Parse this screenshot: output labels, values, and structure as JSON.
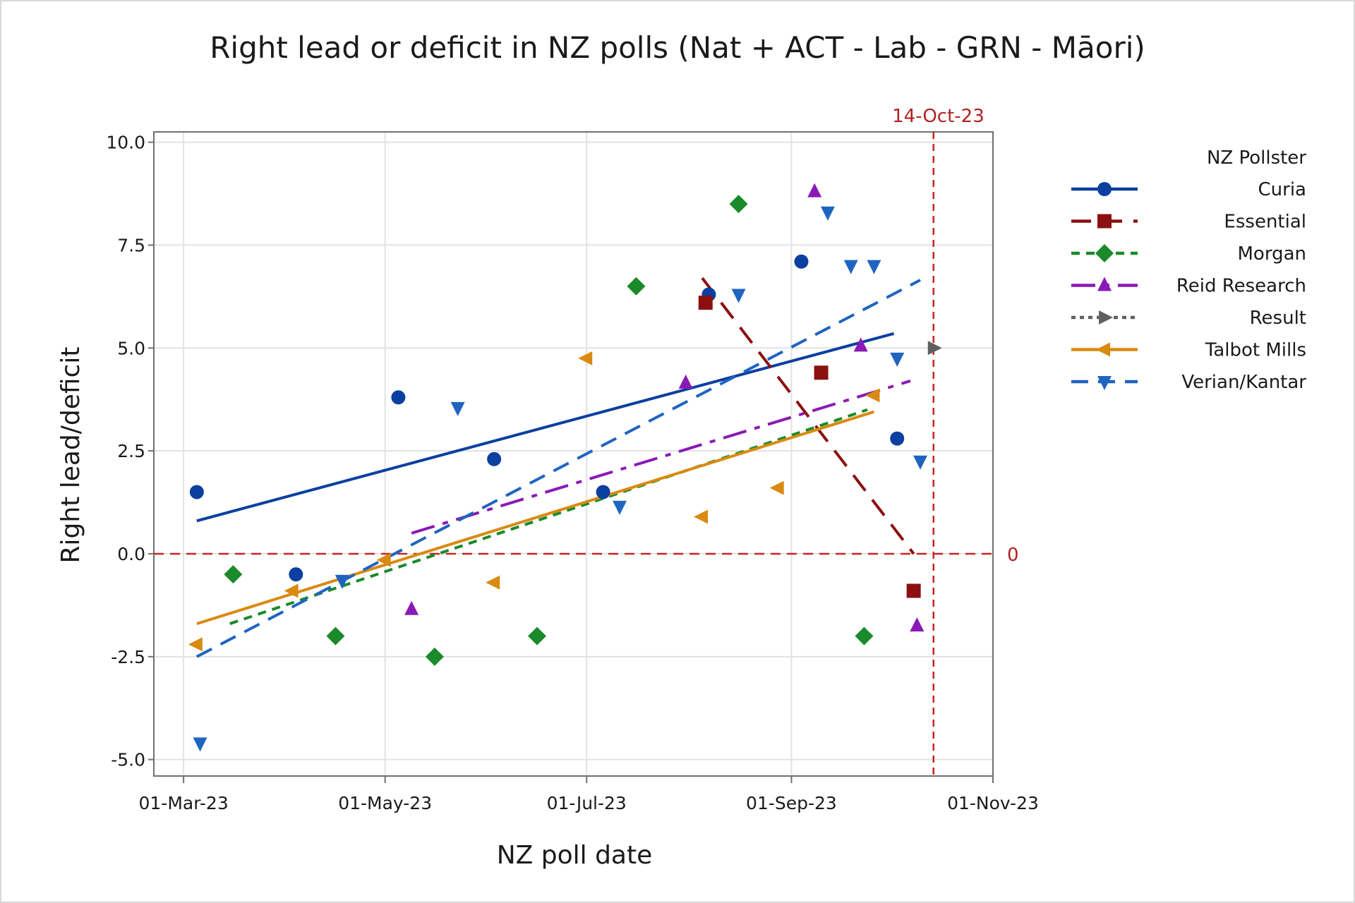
{
  "chart_data": {
    "type": "scatter",
    "title": "Right lead or deficit in NZ polls (Nat + ACT - Lab - GRN - Māori)",
    "xlabel": "NZ poll date",
    "ylabel": "Right lead/deficit",
    "x_ticks": [
      "2023-03-01",
      "2023-05-01",
      "2023-07-01",
      "2023-09-01",
      "2023-11-01"
    ],
    "x_tick_labels": [
      "01-Mar-23",
      "01-May-23",
      "01-Jul-23",
      "01-Sep-23",
      "01-Nov-23"
    ],
    "xlim": [
      "2023-02-20",
      "2023-11-01"
    ],
    "y_ticks": [
      -5.0,
      -2.5,
      0.0,
      2.5,
      5.0,
      7.5,
      10.0
    ],
    "y_tick_labels": [
      "-5.0",
      "-2.5",
      "0.0",
      "2.5",
      "5.0",
      "7.5",
      "10.0"
    ],
    "ylim": [
      -5.4,
      10.25
    ],
    "grid": true,
    "legend": {
      "title": "NZ Pollster",
      "position": "right"
    },
    "reference_lines": [
      {
        "axis": "x",
        "value": "2023-10-14",
        "label": "14-Oct-23",
        "color": "#cc2222"
      },
      {
        "axis": "y",
        "value": 0,
        "label": "0",
        "color": "#cc2222"
      }
    ],
    "series": [
      {
        "name": "Curia",
        "color": "#0b3fa0",
        "marker": "circle",
        "line": "solid",
        "points": [
          [
            "2023-03-05",
            1.5
          ],
          [
            "2023-04-04",
            -0.5
          ],
          [
            "2023-05-05",
            3.8
          ],
          [
            "2023-06-03",
            2.3
          ],
          [
            "2023-07-06",
            1.5
          ],
          [
            "2023-08-07",
            6.3
          ],
          [
            "2023-09-04",
            7.1
          ],
          [
            "2023-10-03",
            2.8
          ]
        ],
        "trend": [
          [
            "2023-03-05",
            0.8
          ],
          [
            "2023-10-02",
            5.35
          ]
        ]
      },
      {
        "name": "Essential",
        "color": "#8b1010",
        "marker": "square",
        "line": "longdash",
        "points": [
          [
            "2023-08-06",
            6.1
          ],
          [
            "2023-09-10",
            4.4
          ],
          [
            "2023-10-08",
            -0.9
          ]
        ],
        "trend": [
          [
            "2023-08-05",
            6.7
          ],
          [
            "2023-10-08",
            0.0
          ]
        ]
      },
      {
        "name": "Morgan",
        "color": "#1a8a2a",
        "marker": "diamond",
        "line": "shortdash",
        "points": [
          [
            "2023-03-16",
            -0.5
          ],
          [
            "2023-04-16",
            -2.0
          ],
          [
            "2023-05-16",
            -2.5
          ],
          [
            "2023-06-16",
            -2.0
          ],
          [
            "2023-07-16",
            6.5
          ],
          [
            "2023-08-16",
            8.5
          ],
          [
            "2023-09-23",
            -2.0
          ]
        ],
        "trend": [
          [
            "2023-03-15",
            -1.7
          ],
          [
            "2023-09-24",
            3.5
          ]
        ]
      },
      {
        "name": "Reid Research",
        "color": "#8a1ab5",
        "marker": "triangle-up",
        "line": "dashdot",
        "points": [
          [
            "2023-05-09",
            -1.35
          ],
          [
            "2023-07-31",
            4.15
          ],
          [
            "2023-09-08",
            8.8
          ],
          [
            "2023-09-22",
            5.05
          ],
          [
            "2023-10-09",
            -1.75
          ]
        ],
        "trend": [
          [
            "2023-05-09",
            0.5
          ],
          [
            "2023-10-07",
            4.2
          ]
        ]
      },
      {
        "name": "Result",
        "color": "#606060",
        "marker": "triangle-right",
        "line": "dotted",
        "points": [
          [
            "2023-10-14",
            5.0
          ]
        ],
        "trend": []
      },
      {
        "name": "Talbot Mills",
        "color": "#d98a10",
        "marker": "triangle-left",
        "line": "solid",
        "points": [
          [
            "2023-03-05",
            -2.2
          ],
          [
            "2023-04-03",
            -0.9
          ],
          [
            "2023-05-01",
            -0.15
          ],
          [
            "2023-06-03",
            -0.7
          ],
          [
            "2023-07-01",
            4.75
          ],
          [
            "2023-08-05",
            0.9
          ],
          [
            "2023-08-28",
            1.6
          ],
          [
            "2023-09-26",
            3.85
          ]
        ],
        "trend": [
          [
            "2023-03-05",
            -1.7
          ],
          [
            "2023-09-26",
            3.45
          ]
        ]
      },
      {
        "name": "Verian/Kantar",
        "color": "#1f64c0",
        "marker": "triangle-down",
        "line": "dashed",
        "points": [
          [
            "2023-03-06",
            -4.6
          ],
          [
            "2023-04-18",
            -0.65
          ],
          [
            "2023-05-23",
            3.55
          ],
          [
            "2023-07-11",
            1.15
          ],
          [
            "2023-08-16",
            6.3
          ],
          [
            "2023-09-12",
            8.3
          ],
          [
            "2023-09-19",
            7.0
          ],
          [
            "2023-09-26",
            7.0
          ],
          [
            "2023-10-03",
            4.75
          ],
          [
            "2023-10-10",
            2.25
          ]
        ],
        "trend": [
          [
            "2023-03-05",
            -2.5
          ],
          [
            "2023-10-10",
            6.65
          ]
        ]
      }
    ]
  }
}
